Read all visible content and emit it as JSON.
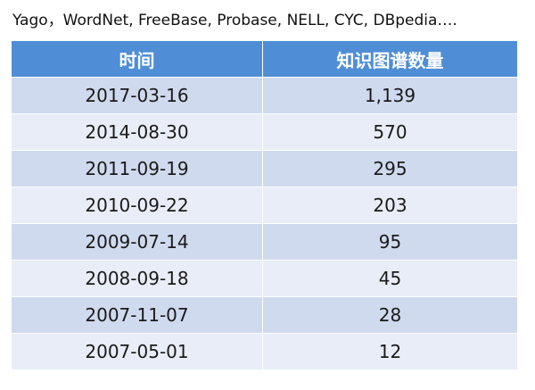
{
  "caption": "Yago，WordNet, FreeBase, Probase, NELL, CYC, DBpedia….",
  "table": {
    "headers": [
      "时间",
      "知识图谱数量"
    ],
    "rows": [
      [
        "2017-03-16",
        "1,139"
      ],
      [
        "2014-08-30",
        "570"
      ],
      [
        "2011-09-19",
        "295"
      ],
      [
        "2010-09-22",
        "203"
      ],
      [
        "2009-07-14",
        "95"
      ],
      [
        "2008-09-18",
        "45"
      ],
      [
        "2007-11-07",
        "28"
      ],
      [
        "2007-05-01",
        "12"
      ]
    ]
  },
  "colors": {
    "header_bg": "#4f8ed6",
    "row_odd_bg": "#cfdaee",
    "row_even_bg": "#e8edf7"
  }
}
